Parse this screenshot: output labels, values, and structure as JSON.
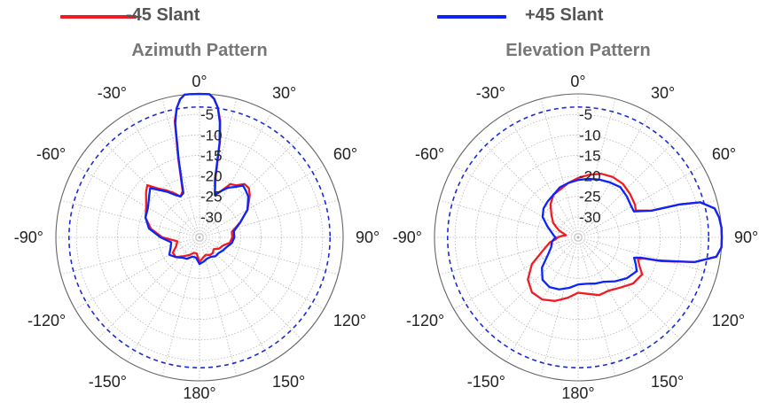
{
  "legend": {
    "items": [
      {
        "label": "-45 Slant",
        "color": "#ee1c25"
      },
      {
        "label": "+45 Slant",
        "color": "#0b24fb"
      }
    ]
  },
  "colors": {
    "minus45": "#ee1c25",
    "plus45": "#0b24fb",
    "reference": "#1a2bd6",
    "grid": "#9a9a9a",
    "title": "#777777",
    "ticks": "#222222"
  },
  "chart_data": [
    {
      "type": "polar-line",
      "title": "Azimuth Pattern",
      "theta_direction": "clockwise",
      "theta_zero": "top",
      "angle_ticks": [
        "0°",
        "30°",
        "60°",
        "90°",
        "120°",
        "150°",
        "180°",
        "-150°",
        "-120°",
        "-90°",
        "-60°",
        "-30°"
      ],
      "radial_ticks": [
        "-5",
        "-10",
        "-15",
        "-20",
        "-25",
        "-30"
      ],
      "r_range_db": [
        -35,
        0
      ],
      "reference_circle_db": -3.2,
      "series": [
        {
          "name": "-45 Slant",
          "color": "#ee1c25",
          "angles_deg": [
            -180,
            -170,
            -160,
            -150,
            -140,
            -130,
            -120,
            -110,
            -100,
            -90,
            -80,
            -70,
            -60,
            -50,
            -45,
            -40,
            -35,
            -30,
            -25,
            -20,
            -15,
            -12,
            -10,
            -8,
            -6,
            -4,
            -2,
            0,
            2,
            4,
            6,
            8,
            10,
            12,
            15,
            20,
            25,
            30,
            35,
            40,
            45,
            50,
            60,
            70,
            80,
            90,
            100,
            110,
            120,
            130,
            140,
            150,
            160,
            170
          ],
          "gain_db": [
            -29,
            -31,
            -31,
            -30,
            -29,
            -27.5,
            -27.5,
            -29,
            -29.5,
            -26,
            -23,
            -21,
            -20,
            -18,
            -17,
            -19.5,
            -21,
            -22.5,
            -24,
            -23,
            -15,
            -6,
            -3,
            -1,
            0,
            0,
            0,
            0,
            0,
            0,
            -1,
            -3,
            -6,
            -11,
            -20,
            -24,
            -22.5,
            -20,
            -19.5,
            -18,
            -18,
            -19,
            -21.5,
            -24.5,
            -27,
            -27,
            -27.5,
            -29,
            -29.5,
            -30.5,
            -30,
            -30,
            -30.5,
            -30
          ]
        },
        {
          "name": "+45 Slant",
          "color": "#0b24fb",
          "angles_deg": [
            -180,
            -170,
            -160,
            -150,
            -140,
            -130,
            -120,
            -110,
            -100,
            -90,
            -80,
            -70,
            -60,
            -50,
            -45,
            -40,
            -35,
            -30,
            -25,
            -20,
            -15,
            -12,
            -10,
            -8,
            -6,
            -4,
            -2,
            0,
            2,
            4,
            6,
            8,
            10,
            12,
            15,
            20,
            25,
            30,
            35,
            40,
            45,
            50,
            60,
            70,
            80,
            90,
            100,
            110,
            120,
            130,
            140,
            150,
            160,
            170
          ],
          "gain_db": [
            -28.5,
            -30,
            -30,
            -29,
            -28.5,
            -27.5,
            -26.5,
            -27.5,
            -28,
            -25.5,
            -22.5,
            -21,
            -20.5,
            -19,
            -18,
            -20,
            -21.5,
            -23,
            -24,
            -23.5,
            -15.5,
            -6.5,
            -3,
            -1,
            0,
            0,
            0,
            0,
            0,
            0,
            -1,
            -3,
            -6.5,
            -11.5,
            -20.5,
            -24,
            -22.5,
            -21,
            -20,
            -18.5,
            -19,
            -19.5,
            -21.5,
            -24.5,
            -26.5,
            -26.5,
            -27,
            -28,
            -28.5,
            -29,
            -29,
            -29.5,
            -29.5,
            -29
          ]
        }
      ]
    },
    {
      "type": "polar-line",
      "title": "Elevation Pattern",
      "theta_direction": "clockwise",
      "theta_zero": "top",
      "angle_ticks": [
        "0°",
        "30°",
        "60°",
        "90°",
        "120°",
        "150°",
        "180°",
        "-150°",
        "-120°",
        "-90°",
        "-60°",
        "-30°"
      ],
      "radial_ticks": [
        "-5",
        "-10",
        "-15",
        "-20",
        "-25",
        "-30"
      ],
      "r_range_db": [
        -35,
        0
      ],
      "reference_circle_db": -3.2,
      "series": [
        {
          "name": "-45 Slant",
          "color": "#ee1c25",
          "angles_deg": [
            -180,
            -170,
            -160,
            -150,
            -140,
            -130,
            -120,
            -110,
            -100,
            -95,
            -90,
            -85,
            -80,
            -70,
            -60,
            -50,
            -40,
            -30,
            -20,
            -10,
            0,
            10,
            20,
            30,
            40,
            50,
            60,
            65,
            70,
            72,
            74,
            78,
            82,
            86,
            90,
            94,
            98,
            102,
            106,
            108,
            110,
            115,
            120,
            130,
            140,
            150,
            160,
            170
          ],
          "gain_db": [
            -21.5,
            -20,
            -18.5,
            -17.5,
            -17.5,
            -19,
            -22,
            -26,
            -28,
            -29.5,
            -30,
            -31,
            -32,
            -30,
            -28,
            -26.5,
            -24.5,
            -23,
            -22.5,
            -21.5,
            -20.5,
            -19.5,
            -18.5,
            -18,
            -18,
            -18.5,
            -19,
            -19.5,
            -16,
            -9,
            -4,
            -1,
            -0.3,
            0,
            0,
            0,
            -1,
            -6,
            -14,
            -18.5,
            -19.5,
            -18.5,
            -17,
            -17.5,
            -19,
            -20,
            -20,
            -21
          ]
        },
        {
          "name": "+45 Slant",
          "color": "#0b24fb",
          "angles_deg": [
            -180,
            -170,
            -160,
            -150,
            -140,
            -130,
            -120,
            -110,
            -100,
            -95,
            -90,
            -85,
            -80,
            -70,
            -60,
            -50,
            -40,
            -30,
            -20,
            -10,
            0,
            10,
            20,
            30,
            40,
            50,
            60,
            65,
            70,
            72,
            74,
            78,
            82,
            86,
            90,
            94,
            98,
            102,
            106,
            108,
            110,
            115,
            120,
            130,
            140,
            150,
            160,
            170
          ],
          "gain_db": [
            -23.5,
            -22.5,
            -21.5,
            -21,
            -21.5,
            -23.5,
            -26.5,
            -28,
            -28.5,
            -29,
            -29.5,
            -29,
            -28.5,
            -27,
            -25,
            -24,
            -23.5,
            -23,
            -22,
            -21.5,
            -21,
            -20.5,
            -20,
            -19.5,
            -19,
            -19.5,
            -20,
            -20,
            -16,
            -9,
            -4,
            -1,
            -0.3,
            0,
            0,
            0,
            -1,
            -6,
            -14.5,
            -19,
            -20.5,
            -19.5,
            -18.5,
            -19.5,
            -21,
            -22.5,
            -23,
            -23.5
          ]
        }
      ]
    }
  ]
}
